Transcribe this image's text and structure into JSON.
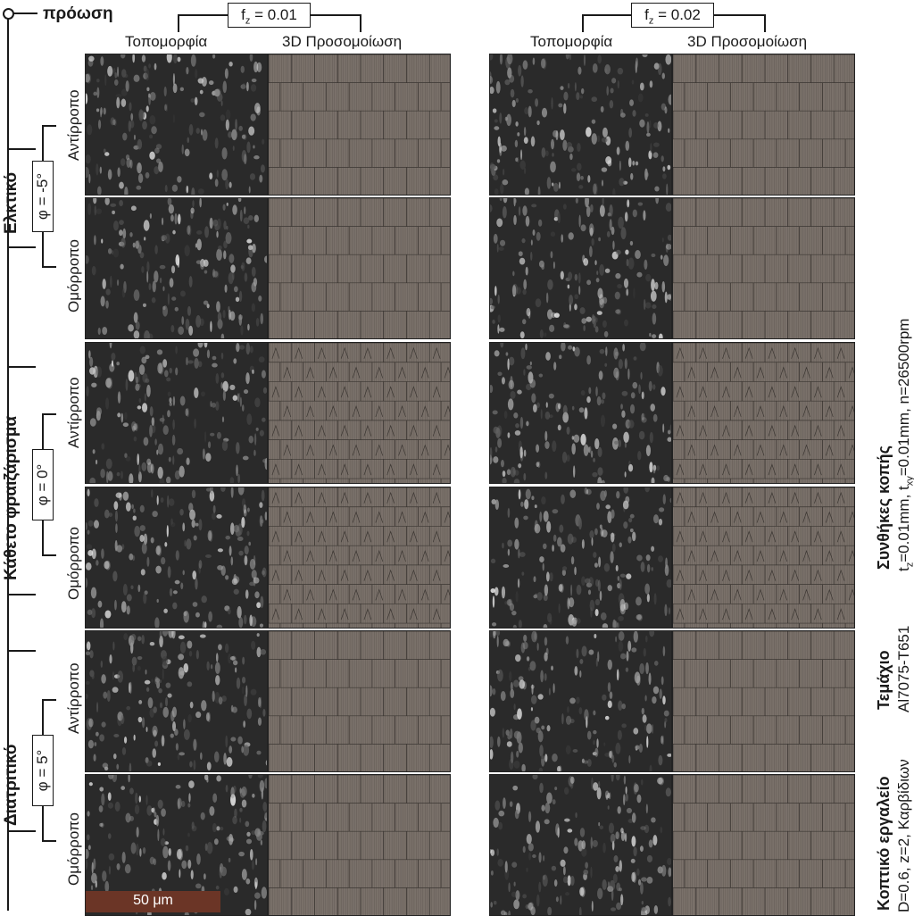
{
  "feed_label": "πρόωση",
  "columns": [
    {
      "fz_prefix": "f",
      "fz_sub": "z",
      "fz_value": " = 0.01",
      "topography": "Τοπομορφία",
      "simulation": "3D Προσομοίωση"
    },
    {
      "fz_prefix": "f",
      "fz_sub": "z",
      "fz_value": " = 0.02",
      "topography": "Τοπομορφία",
      "simulation": "3D Προσομοίωση"
    }
  ],
  "groups": [
    {
      "name": "Ελκτικό",
      "phi": "φ = -5°",
      "rows": [
        "Αντίρροπο",
        "Ομόρροπο"
      ]
    },
    {
      "name": "Κάθετο φραιζάρισμα",
      "phi": "φ = 0°",
      "rows": [
        "Αντίρροπο",
        "Ομόρροπο"
      ]
    },
    {
      "name": "Διατριτικό",
      "phi": "φ = 5°",
      "rows": [
        "Αντίρροπο",
        "Ομόρροπο"
      ]
    }
  ],
  "scale_bar": {
    "label": "50 μm",
    "color": "#6b3526"
  },
  "right_info": [
    {
      "title": "Συνθήκες κοπής",
      "line_parts": [
        "t",
        "z",
        "=0.01mm, t",
        "xy",
        "=0.01mm, n=26500rpm"
      ]
    },
    {
      "title": "Τεμάχιο",
      "line": "Al7075-T651"
    },
    {
      "title": "Κοπτικό εργαλείο",
      "line": "D=0.6, z=2, Καρβίδιων"
    }
  ],
  "colors": {
    "topography_bg": "#2a2a2a",
    "simulation_bg": "#7a716a",
    "sim_line": "#3b3632"
  }
}
